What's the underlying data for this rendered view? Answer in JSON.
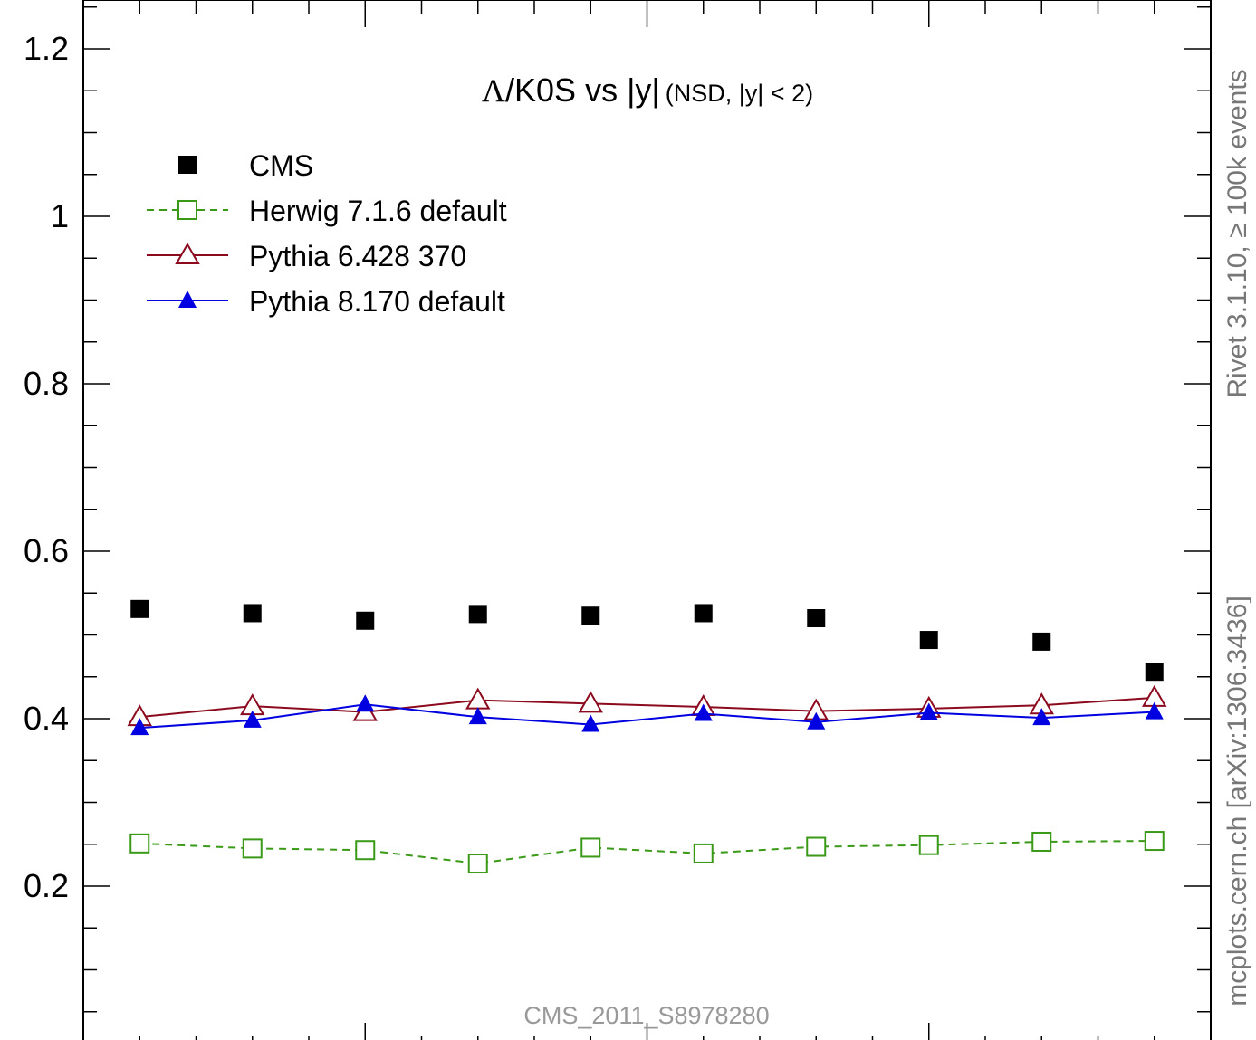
{
  "chart_data": {
    "type": "line",
    "title": "Λ/K0S vs |y|",
    "title_greek": "Λ",
    "title_main": "/K0S vs |y|",
    "subtitle": "(NSD, |y| < 2)",
    "analysis_id": "CMS_2011_S8978280",
    "side_label_top": "Rivet 3.1.10, ≥ 100k events",
    "side_label_bottom": "mcplots.cern.ch [arXiv:1306.3436]",
    "xlim": [
      0,
      2
    ],
    "ylim": [
      0.05,
      1.25
    ],
    "y_ticks": [
      0.2,
      0.4,
      0.6,
      0.8,
      1.0,
      1.2
    ],
    "y_tick_labels": [
      "0.2",
      "0.4",
      "0.6",
      "0.8",
      "1",
      "1.2"
    ],
    "x": [
      0.1,
      0.3,
      0.5,
      0.7,
      0.9,
      1.1,
      1.3,
      1.5,
      1.7,
      1.9
    ],
    "legend_position": "top-left",
    "series": [
      {
        "name": "CMS",
        "color": "#000000",
        "marker": "filled-square",
        "line": "none",
        "values": [
          0.531,
          0.526,
          0.517,
          0.525,
          0.523,
          0.526,
          0.52,
          0.494,
          0.492,
          0.456
        ]
      },
      {
        "name": "Herwig 7.1.6 default",
        "color": "#3a9a18",
        "marker": "open-square",
        "line": "dashed",
        "values": [
          0.251,
          0.245,
          0.243,
          0.227,
          0.246,
          0.239,
          0.247,
          0.249,
          0.253,
          0.254
        ]
      },
      {
        "name": "Pythia 6.428 370",
        "color": "#8b0a1e",
        "marker": "open-triangle",
        "line": "solid",
        "values": [
          0.402,
          0.415,
          0.408,
          0.422,
          0.418,
          0.414,
          0.409,
          0.412,
          0.416,
          0.425
        ]
      },
      {
        "name": "Pythia 8.170 default",
        "color": "#0000e0",
        "marker": "filled-triangle",
        "line": "solid",
        "values": [
          0.389,
          0.398,
          0.417,
          0.402,
          0.393,
          0.406,
          0.396,
          0.407,
          0.401,
          0.408
        ]
      }
    ]
  }
}
